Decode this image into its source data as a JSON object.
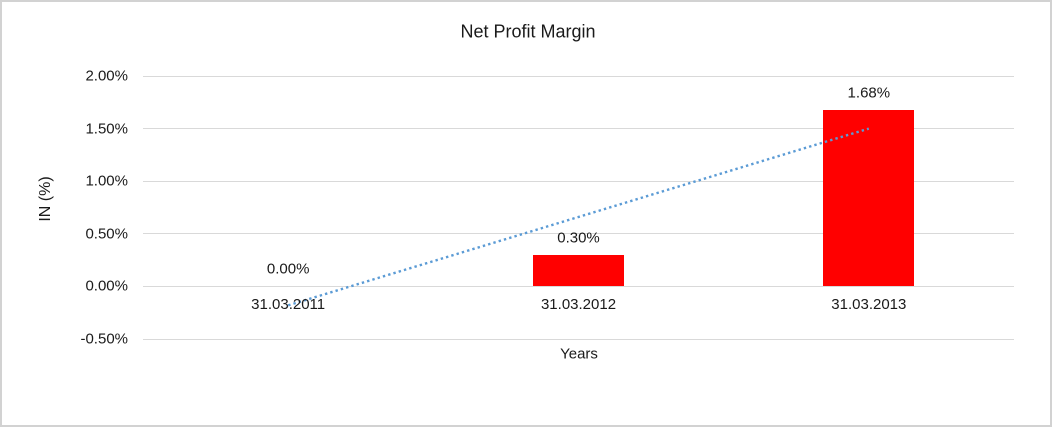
{
  "chart_data": {
    "type": "bar",
    "title": "Net Profit Margin",
    "xlabel": "Years",
    "ylabel": "IN (%)",
    "categories": [
      "31.03.2011",
      "31.03.2012",
      "31.03.2013"
    ],
    "values": [
      0.0,
      0.3,
      1.68
    ],
    "data_labels": [
      "0.00%",
      "0.30%",
      "1.68%"
    ],
    "ylim": [
      -0.5,
      2.0
    ],
    "yticks": [
      2.0,
      1.5,
      1.0,
      0.5,
      0.0,
      -0.5
    ],
    "ytick_labels": [
      "2.00%",
      "1.50%",
      "1.00%",
      "0.50%",
      "0.00%",
      "-0.50%"
    ],
    "grid": true,
    "legend": "none",
    "bar_color": "#ff0000",
    "gridline_color": "#d9d9d9",
    "trendline": {
      "type": "linear",
      "style": "dotted",
      "color": "#5b9bd5",
      "start_value": -0.18,
      "end_value": 1.5
    }
  }
}
